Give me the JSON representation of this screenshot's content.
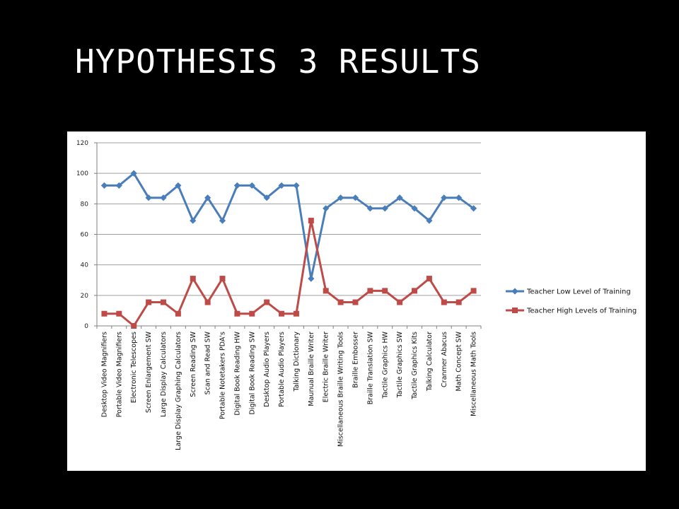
{
  "slide": {
    "title": "HYPOTHESIS 3 RESULTS"
  },
  "colors": {
    "background": "#000000",
    "panel": "#ffffff",
    "series_low": "#4a7ebb",
    "series_high": "#be4b48",
    "grid": "#a0a0a0"
  },
  "chart_data": {
    "type": "line",
    "title": "",
    "xlabel": "",
    "ylabel": "",
    "ylim": [
      0,
      120
    ],
    "yticks": [
      0,
      20,
      40,
      60,
      80,
      100,
      120
    ],
    "grid": true,
    "legend_position": "right",
    "categories": [
      "Desktop Video Magnifiers",
      "Portable Video Magnifiers",
      "Electronic Telescopes",
      "Screen Enlargement SW",
      "Large Display Calculators",
      "Large Display Graphing Calculators",
      "Screen Reading SW",
      "Scan and Read SW",
      "Portable Notetakers PDA's",
      "Digital Book Reading HW",
      "Digital Book Reading SW",
      "Desktop Audio Players",
      "Portable Audio Players",
      "Talking Dictionary",
      "Maunual Braille Writer",
      "Electric Braille Writer",
      "Miscellaneous Braille Writing Tools",
      "Braille Embosser",
      "Braille Translation SW",
      "Tactile Graphics HW",
      "Tactile Graphics SW",
      "Tactile Graphics Kits",
      "Talking Calculator",
      "Cranmer Abacus",
      "Math Concept SW",
      "Miscellaneous Math Tools"
    ],
    "series": [
      {
        "name": "Teacher Low Level of Training",
        "marker": "diamond",
        "values": [
          92,
          92,
          100,
          84,
          84,
          92,
          69,
          84,
          69,
          92,
          92,
          84,
          92,
          92,
          31,
          77,
          84,
          84,
          77,
          77,
          84,
          77,
          69,
          84,
          84,
          77
        ]
      },
      {
        "name": "Teacher High Levels of Training",
        "marker": "square",
        "values": [
          8,
          8,
          0,
          15.5,
          15.5,
          8,
          31,
          15.5,
          31,
          8,
          8,
          15.5,
          8,
          8,
          69,
          23,
          15.5,
          15.5,
          23,
          23,
          15.5,
          23,
          31,
          15.5,
          15.5,
          23
        ]
      }
    ]
  }
}
